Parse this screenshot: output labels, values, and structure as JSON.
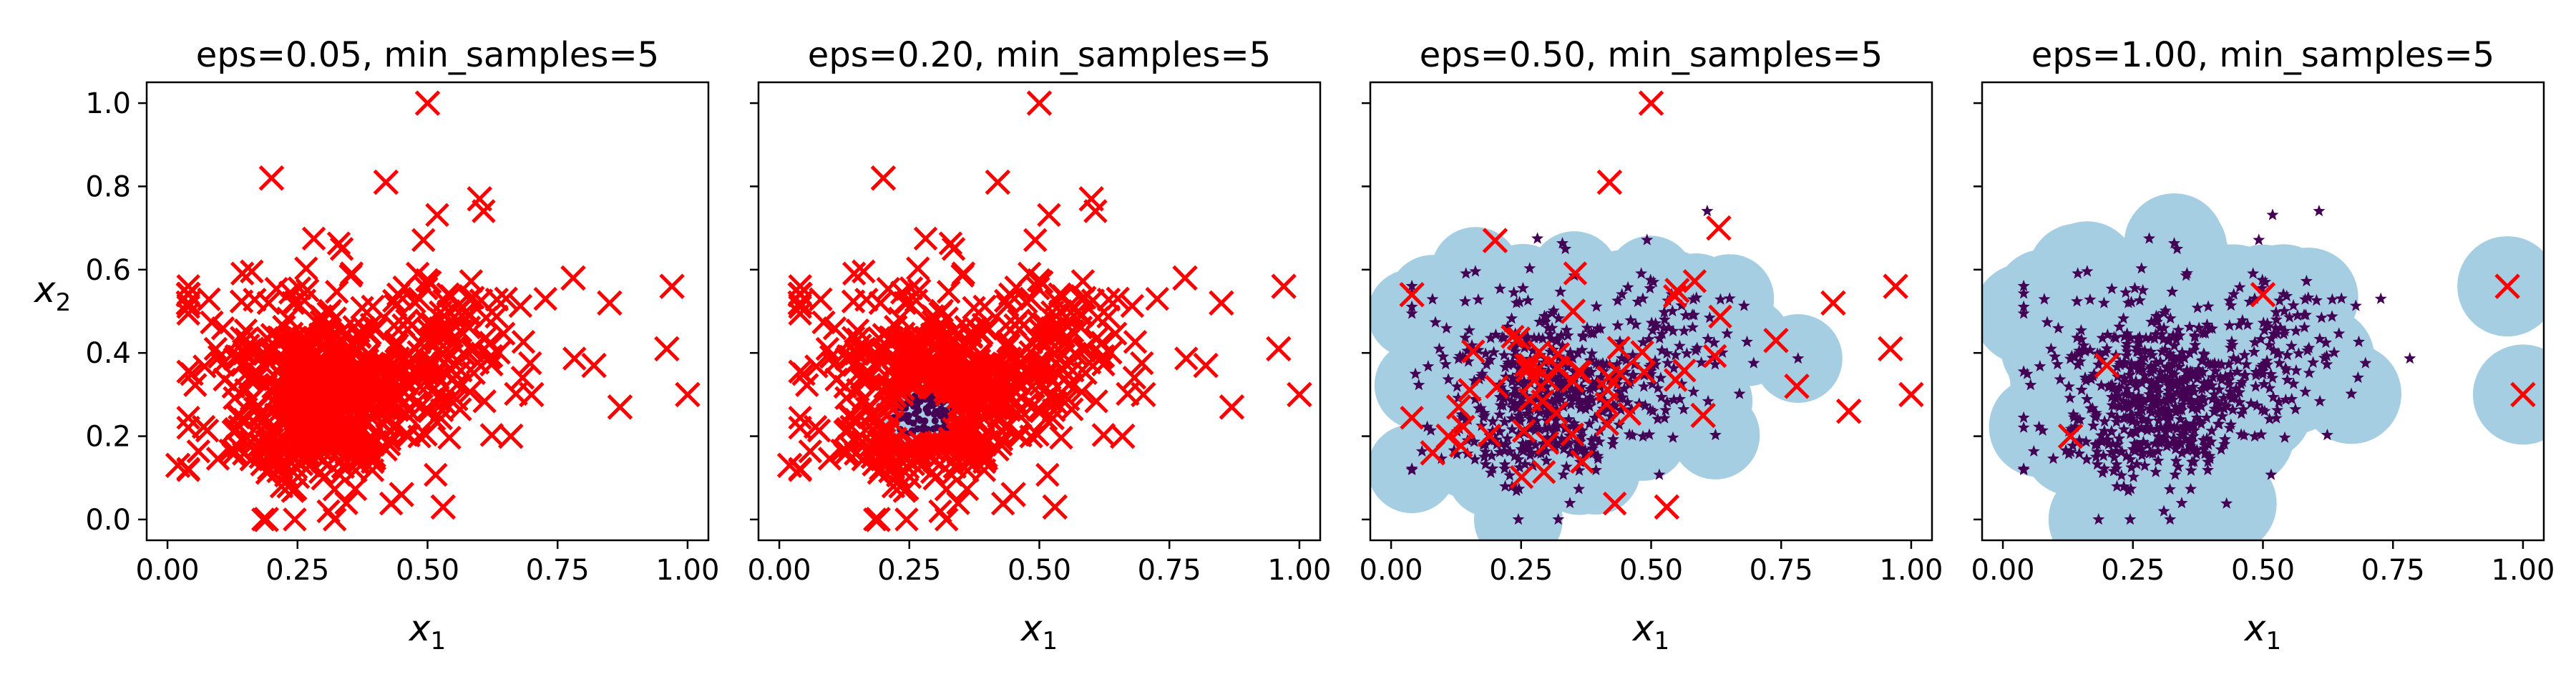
{
  "chart_data": [
    {
      "type": "scatter",
      "title": "eps=0.05, min_samples=5",
      "xlabel": "x",
      "xlabel_sub": "1",
      "ylabel": "x",
      "ylabel_sub": "2",
      "xlim": [
        -0.04,
        1.04
      ],
      "ylim": [
        -0.05,
        1.05
      ],
      "xticks": [
        "0.00",
        "0.25",
        "0.50",
        "0.75",
        "1.00"
      ],
      "yticks": [
        "0.0",
        "0.2",
        "0.4",
        "0.6",
        "0.8",
        "1.0"
      ],
      "show_ytick_labels": true,
      "core_coverage": "none",
      "outliers_sample": [
        [
          0.5,
          1.0
        ],
        [
          0.2,
          0.82
        ],
        [
          0.42,
          0.81
        ],
        [
          0.6,
          0.77
        ],
        [
          0.97,
          0.56
        ],
        [
          0.96,
          0.41
        ],
        [
          1.0,
          0.3
        ],
        [
          0.87,
          0.27
        ],
        [
          0.78,
          0.58
        ],
        [
          0.02,
          0.13
        ],
        [
          0.53,
          0.03
        ],
        [
          0.19,
          0.0
        ],
        [
          0.04,
          0.54
        ],
        [
          0.04,
          0.52
        ],
        [
          0.85,
          0.52
        ],
        [
          0.82,
          0.37
        ],
        [
          0.7,
          0.3
        ],
        [
          0.66,
          0.2
        ],
        [
          0.3,
          0.1
        ],
        [
          0.45,
          0.06
        ]
      ]
    },
    {
      "type": "scatter",
      "title": "eps=0.20, min_samples=5",
      "xlabel": "x",
      "xlabel_sub": "1",
      "xlim": [
        -0.04,
        1.04
      ],
      "ylim": [
        -0.05,
        1.05
      ],
      "xticks": [
        "0.00",
        "0.25",
        "0.50",
        "0.75",
        "1.00"
      ],
      "show_ytick_labels": false,
      "core_coverage": "small",
      "outliers_sample": [
        [
          0.5,
          1.0
        ],
        [
          0.2,
          0.82
        ],
        [
          0.42,
          0.81
        ],
        [
          0.6,
          0.77
        ],
        [
          0.97,
          0.56
        ],
        [
          0.96,
          0.41
        ],
        [
          1.0,
          0.3
        ],
        [
          0.87,
          0.27
        ],
        [
          0.78,
          0.58
        ],
        [
          0.02,
          0.13
        ],
        [
          0.53,
          0.03
        ],
        [
          0.19,
          0.0
        ],
        [
          0.04,
          0.54
        ],
        [
          0.04,
          0.52
        ],
        [
          0.85,
          0.52
        ],
        [
          0.82,
          0.37
        ],
        [
          0.7,
          0.3
        ],
        [
          0.66,
          0.2
        ],
        [
          0.3,
          0.1
        ],
        [
          0.45,
          0.06
        ]
      ]
    },
    {
      "type": "scatter",
      "title": "eps=0.50, min_samples=5",
      "xlabel": "x",
      "xlabel_sub": "1",
      "xlim": [
        -0.04,
        1.04
      ],
      "ylim": [
        -0.05,
        1.05
      ],
      "xticks": [
        "0.00",
        "0.25",
        "0.50",
        "0.75",
        "1.00"
      ],
      "show_ytick_labels": false,
      "core_coverage": "large",
      "outliers_sample": [
        [
          0.5,
          1.0
        ],
        [
          0.42,
          0.81
        ],
        [
          0.97,
          0.56
        ],
        [
          0.96,
          0.41
        ],
        [
          1.0,
          0.3
        ],
        [
          0.88,
          0.26
        ],
        [
          0.85,
          0.52
        ],
        [
          0.53,
          0.03
        ],
        [
          0.04,
          0.54
        ],
        [
          0.08,
          0.16
        ],
        [
          0.11,
          0.2
        ],
        [
          0.13,
          0.27
        ],
        [
          0.2,
          0.67
        ],
        [
          0.35,
          0.5
        ],
        [
          0.55,
          0.55
        ],
        [
          0.63,
          0.7
        ],
        [
          0.6,
          0.25
        ],
        [
          0.44,
          0.35
        ],
        [
          0.78,
          0.32
        ],
        [
          0.74,
          0.43
        ]
      ]
    },
    {
      "type": "scatter",
      "title": "eps=1.00, min_samples=5",
      "xlabel": "x",
      "xlabel_sub": "1",
      "xlim": [
        -0.04,
        1.04
      ],
      "ylim": [
        -0.05,
        1.05
      ],
      "xticks": [
        "0.00",
        "0.25",
        "0.50",
        "0.75",
        "1.00"
      ],
      "show_ytick_labels": false,
      "core_coverage": "full",
      "outliers_sample": [
        [
          0.97,
          0.56
        ],
        [
          1.0,
          0.3
        ],
        [
          0.5,
          0.54
        ],
        [
          0.2,
          0.37
        ],
        [
          0.13,
          0.2
        ]
      ]
    }
  ],
  "colors": {
    "outlier": "#ff0000",
    "core_halo": "#a6cee3",
    "core_point": "#440154",
    "axis": "#000000"
  },
  "markers": {
    "outlier": "x-mark",
    "core": "star-mark",
    "border": "dot-mark"
  }
}
